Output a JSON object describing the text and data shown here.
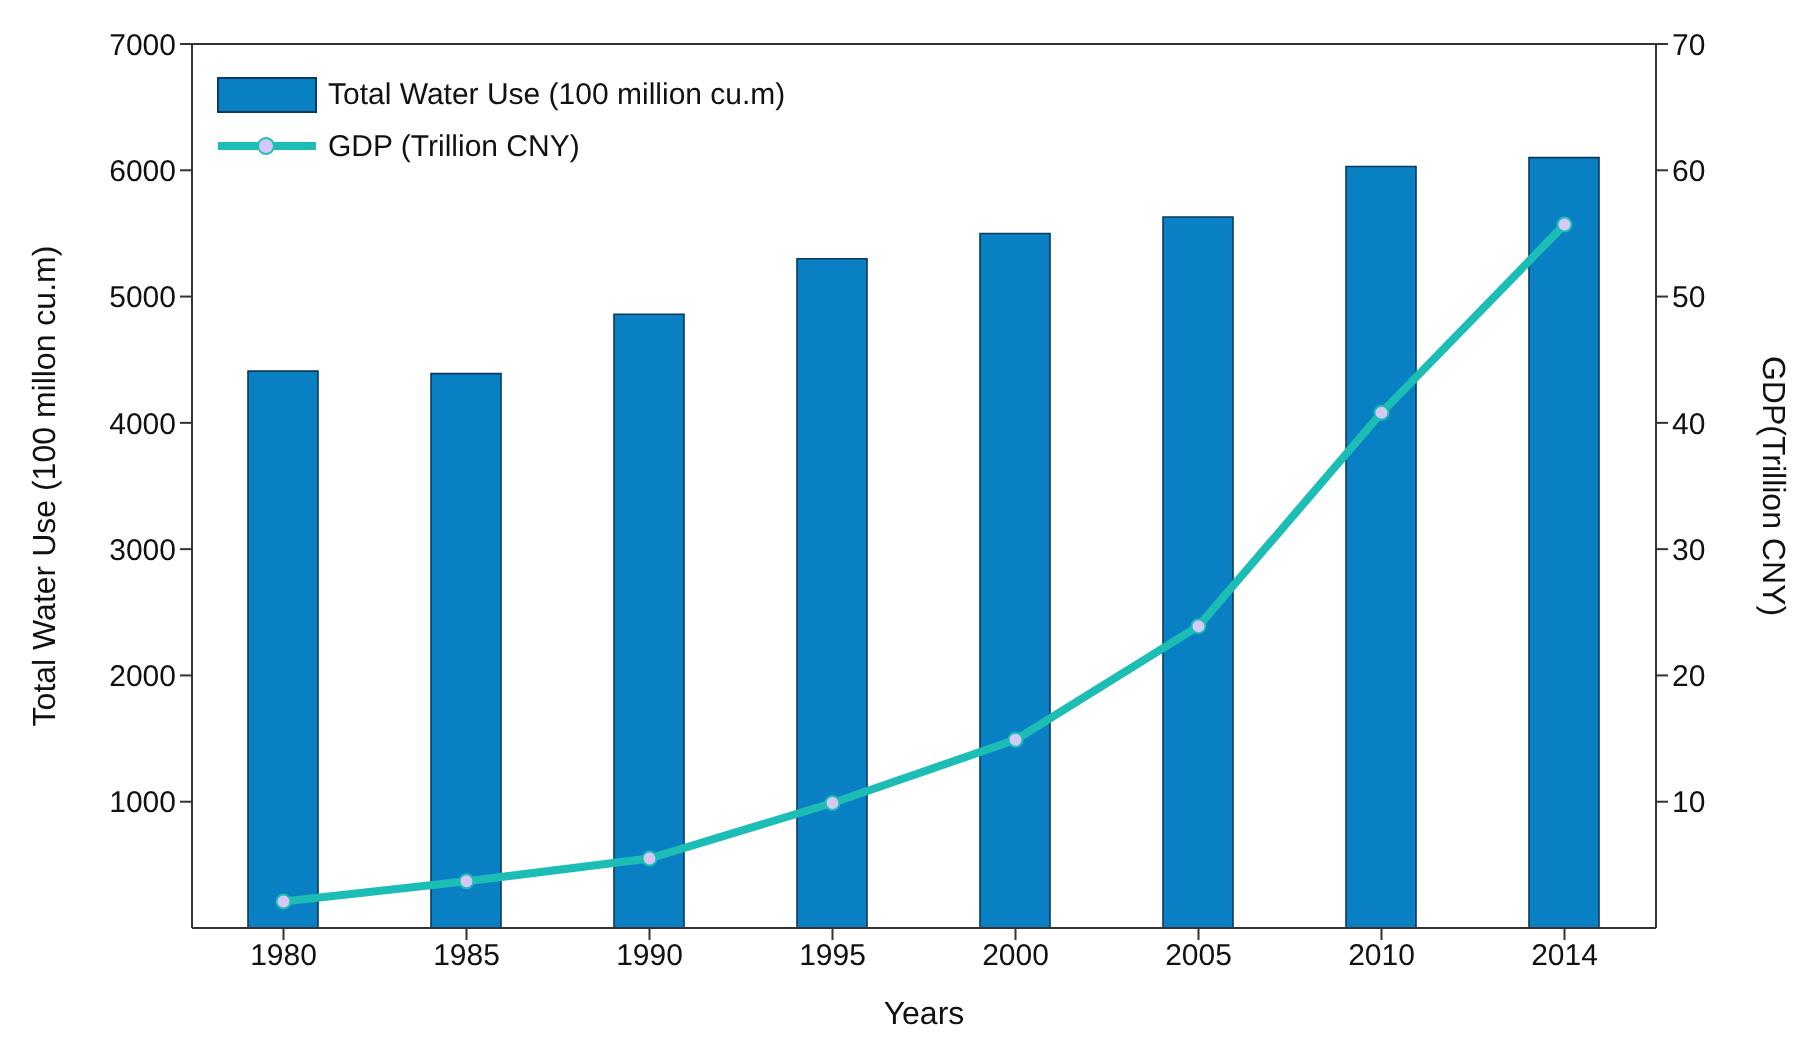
{
  "chart_data": {
    "type": "bar",
    "xlabel": "Years",
    "ylabel": "Total Water Use (100 millon cu.m)",
    "y2label": "GDP(Trillion CNY)",
    "categories": [
      "1980",
      "1985",
      "1990",
      "1995",
      "2000",
      "2005",
      "2010",
      "2014"
    ],
    "series": [
      {
        "name": "Total Water Use (100 million cu.m)",
        "color": "#0a80c4",
        "values": [
          4410,
          4390,
          4860,
          5300,
          5500,
          5630,
          6030,
          6100
        ]
      },
      {
        "name": "GDP (Trillion CNY)",
        "type": "line",
        "axis": "y2",
        "color": "#1cbdb5",
        "marker": "circle",
        "values": [
          2.1,
          3.7,
          5.5,
          9.9,
          14.9,
          23.9,
          40.8,
          55.7
        ]
      }
    ],
    "ylim": [
      0,
      7000
    ],
    "yticks": [
      1000,
      2000,
      3000,
      4000,
      5000,
      6000,
      7000
    ],
    "y2lim": [
      0,
      70
    ],
    "y2ticks": [
      10,
      20,
      30,
      40,
      50,
      60,
      70
    ],
    "legend": "top left",
    "grid": false
  }
}
